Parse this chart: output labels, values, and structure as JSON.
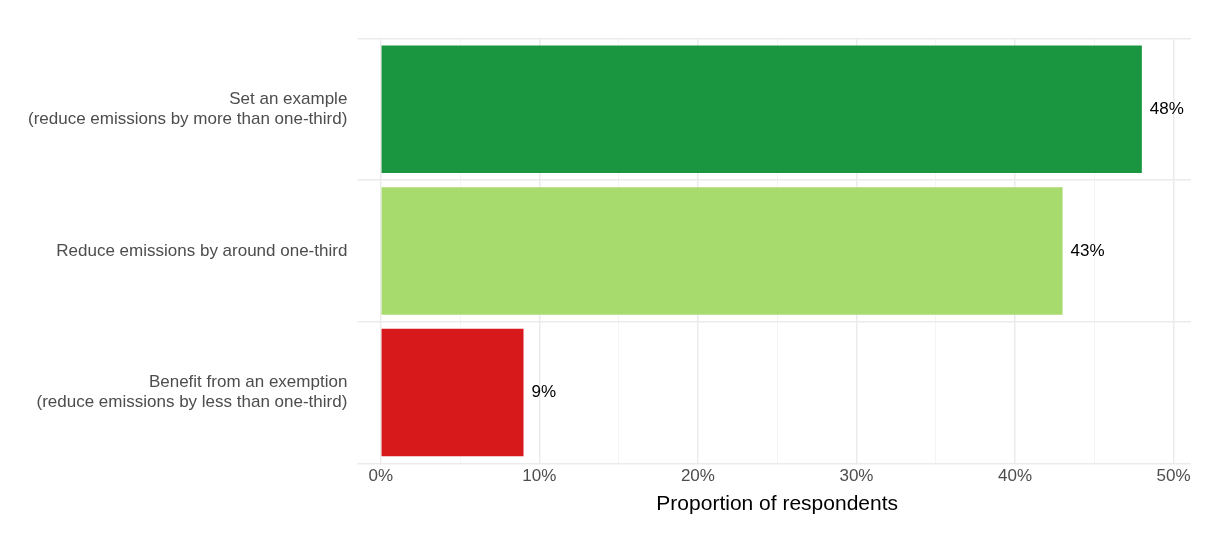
{
  "chart_data": {
    "type": "bar",
    "orientation": "horizontal",
    "xlabel": "Proportion of respondents",
    "categories": [
      "Set an example\n(reduce emissions by more than one-third)",
      "Reduce emissions by around one-third",
      "Benefit from an exemption\n(reduce emissions by less than one-third)"
    ],
    "values": [
      48,
      43,
      9
    ],
    "colors": [
      "#1b9640",
      "#a8db6e",
      "#d7191c"
    ],
    "value_labels": [
      "48%",
      "43%",
      "9%"
    ],
    "xlim": [
      -1.1,
      51.1
    ],
    "xticks": [
      {
        "value": 0,
        "label": "0%"
      },
      {
        "value": 5,
        "label": null
      },
      {
        "value": 10,
        "label": "10%"
      },
      {
        "value": 15,
        "label": null
      },
      {
        "value": 20,
        "label": "20%"
      },
      {
        "value": 25,
        "label": null
      },
      {
        "value": 30,
        "label": "30%"
      },
      {
        "value": 35,
        "label": null
      },
      {
        "value": 40,
        "label": "40%"
      },
      {
        "value": 45,
        "label": null
      },
      {
        "value": 50,
        "label": "50%"
      }
    ],
    "grid": true,
    "legend": false
  }
}
